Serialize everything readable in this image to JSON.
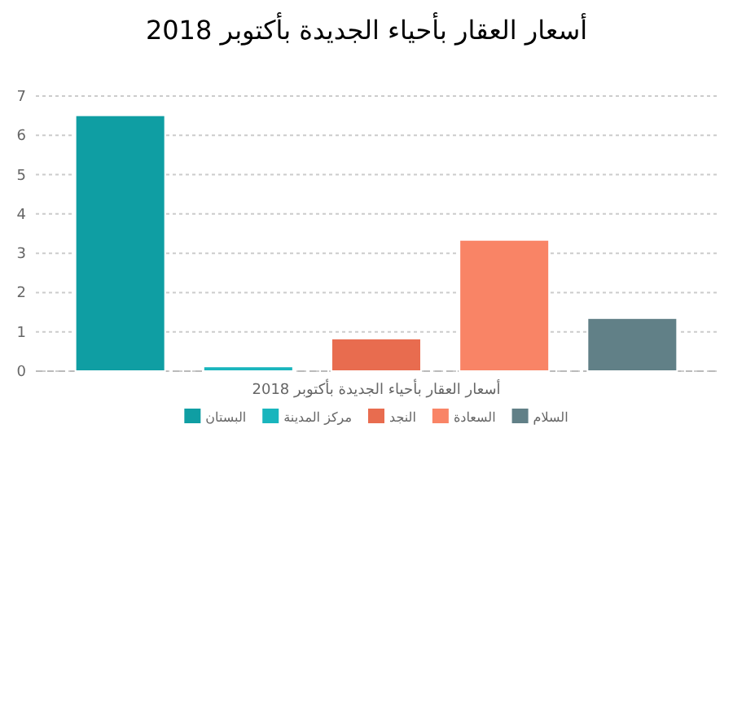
{
  "chart_data": {
    "type": "bar",
    "title": "أسعار العقار بأحياء الجديدة بأكتوبر 2018",
    "categories": [
      "أسعار العقار بأحياء الجديدة بأكتوبر 2018"
    ],
    "series": [
      {
        "name": "البستان",
        "color": "#0f9ea3",
        "values": [
          6.51
        ]
      },
      {
        "name": "مركز المدينة",
        "color": "#19b5bd",
        "values": [
          0.12
        ]
      },
      {
        "name": "النجد",
        "color": "#e86c4f",
        "values": [
          0.83
        ]
      },
      {
        "name": "السعادة",
        "color": "#f98466",
        "values": [
          3.34
        ]
      },
      {
        "name": "السلام",
        "color": "#618087",
        "values": [
          1.35
        ]
      }
    ],
    "ylim": [
      0,
      7
    ],
    "yticks": [
      0,
      1,
      2,
      3,
      4,
      5,
      6,
      7
    ],
    "grid": "y",
    "legend": "bottom"
  }
}
